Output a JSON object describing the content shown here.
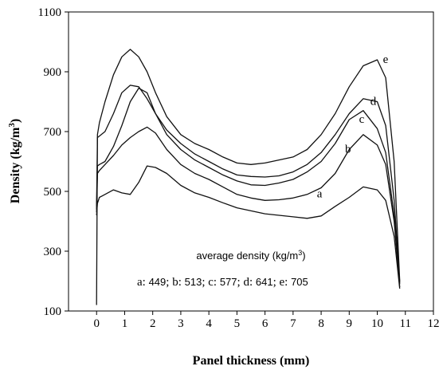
{
  "chart_data": {
    "type": "line",
    "xlabel": "Panel thickness (mm)",
    "ylabel_main": "Density (kg/m",
    "ylabel_sup": "3",
    "ylabel_end": ")",
    "xlim": [
      -1,
      12
    ],
    "ylim": [
      100,
      1100
    ],
    "xticks": [
      0,
      1,
      2,
      3,
      4,
      5,
      6,
      7,
      8,
      9,
      10,
      11,
      12
    ],
    "yticks": [
      100,
      300,
      500,
      700,
      900,
      1100
    ],
    "grid": false,
    "annotation": {
      "title_main": "average density (kg/m",
      "title_sup": "3",
      "title_end": ")",
      "items": [
        {
          "key": "a:",
          "value": "449"
        },
        {
          "key": "b:",
          "value": "513"
        },
        {
          "key": "c:",
          "value": "577"
        },
        {
          "key": "d:",
          "value": "641"
        },
        {
          "key": "e:",
          "value": "705"
        }
      ]
    },
    "series": [
      {
        "name": "a",
        "label_at": [
          7.85,
          480
        ],
        "x": [
          0,
          0.03,
          0.1,
          0.3,
          0.6,
          0.9,
          1.2,
          1.5,
          1.8,
          2.1,
          2.5,
          3,
          3.5,
          4,
          4.5,
          5,
          5.5,
          6,
          6.5,
          7,
          7.5,
          8,
          8.5,
          9,
          9.5,
          10,
          10.3,
          10.6,
          10.8
        ],
        "y": [
          420,
          460,
          480,
          490,
          505,
          495,
          490,
          530,
          585,
          580,
          560,
          520,
          495,
          480,
          462,
          445,
          435,
          425,
          420,
          415,
          410,
          418,
          450,
          480,
          515,
          505,
          470,
          350,
          175
        ]
      },
      {
        "name": "b",
        "label_at": [
          8.85,
          630
        ],
        "x": [
          0,
          0.03,
          0.1,
          0.3,
          0.6,
          0.9,
          1.2,
          1.5,
          1.8,
          2.1,
          2.5,
          3,
          3.5,
          4,
          4.5,
          5,
          5.5,
          6,
          6.5,
          7,
          7.5,
          8,
          8.5,
          9,
          9.5,
          10,
          10.3,
          10.6,
          10.8
        ],
        "y": [
          430,
          560,
          570,
          590,
          620,
          655,
          680,
          700,
          715,
          695,
          640,
          590,
          560,
          540,
          515,
          490,
          478,
          470,
          472,
          478,
          490,
          512,
          560,
          640,
          690,
          655,
          590,
          400,
          180
        ]
      },
      {
        "name": "c",
        "label_at": [
          9.35,
          730
        ],
        "x": [
          0,
          0.03,
          0.1,
          0.3,
          0.6,
          0.9,
          1.2,
          1.5,
          1.8,
          2.1,
          2.5,
          3,
          3.5,
          4,
          4.5,
          5,
          5.5,
          6,
          6.5,
          7,
          7.5,
          8,
          8.5,
          9,
          9.5,
          10,
          10.3,
          10.6,
          10.8
        ],
        "y": [
          440,
          585,
          590,
          600,
          650,
          720,
          800,
          845,
          830,
          760,
          690,
          640,
          605,
          580,
          555,
          535,
          522,
          520,
          528,
          540,
          565,
          600,
          660,
          740,
          770,
          710,
          630,
          420,
          190
        ]
      },
      {
        "name": "d",
        "label_at": [
          9.75,
          790
        ],
        "x": [
          0,
          0.03,
          0.1,
          0.3,
          0.6,
          0.9,
          1.2,
          1.5,
          1.8,
          2.1,
          2.5,
          3,
          3.5,
          4,
          4.5,
          5,
          5.5,
          6,
          6.5,
          7,
          7.5,
          8,
          8.5,
          9,
          9.5,
          10,
          10.3,
          10.6,
          10.8
        ],
        "y": [
          450,
          680,
          685,
          700,
          760,
          830,
          855,
          850,
          810,
          760,
          705,
          660,
          625,
          600,
          575,
          555,
          550,
          548,
          552,
          565,
          590,
          630,
          690,
          760,
          810,
          800,
          720,
          470,
          195
        ]
      },
      {
        "name": "e",
        "label_at": [
          10.2,
          930
        ],
        "x": [
          0,
          0.03,
          0.1,
          0.3,
          0.6,
          0.9,
          1.2,
          1.5,
          1.8,
          2.1,
          2.5,
          3,
          3.5,
          4,
          4.5,
          5,
          5.5,
          6,
          6.5,
          7,
          7.5,
          8,
          8.5,
          9,
          9.5,
          10,
          10.3,
          10.6,
          10.8
        ],
        "y": [
          120,
          690,
          730,
          800,
          890,
          950,
          975,
          950,
          900,
          830,
          750,
          690,
          660,
          640,
          615,
          595,
          590,
          595,
          605,
          615,
          640,
          690,
          760,
          850,
          920,
          940,
          880,
          600,
          200
        ]
      }
    ]
  }
}
